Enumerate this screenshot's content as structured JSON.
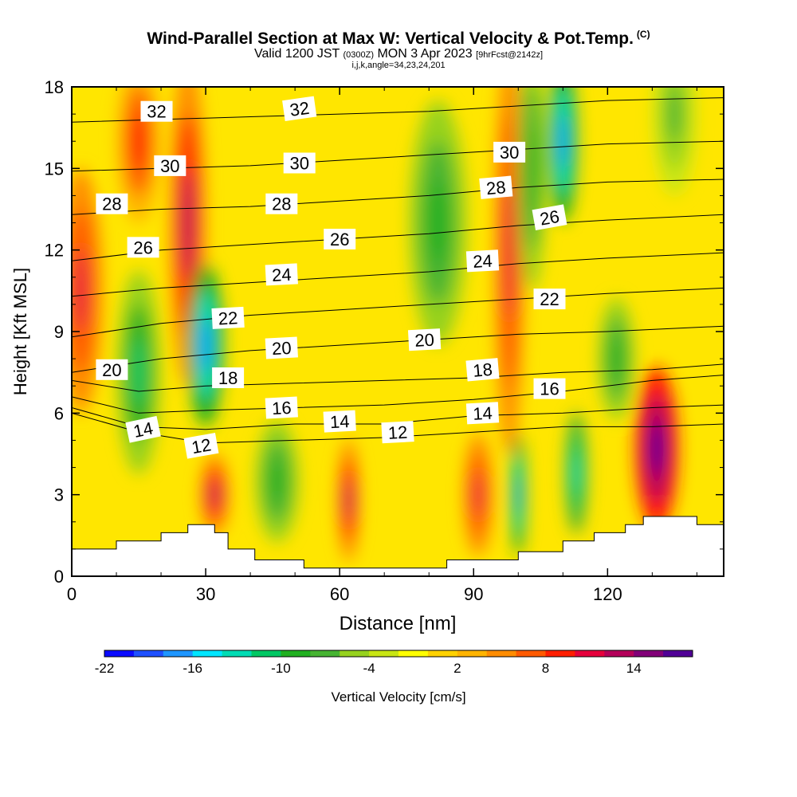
{
  "header": {
    "title": "Wind-Parallel Section at Max W: Vertical Velocity & Pot.Temp.",
    "copyright": "(C)",
    "valid_prefix": "Valid 1200 JST",
    "valid_utc": "(0300Z)",
    "valid_date": "MON 3 Apr 2023",
    "forecast": "[9hrFcst@2142z]",
    "grid_info": "i,j,k,angle=34,23,24,201"
  },
  "chart_data": {
    "type": "heatmap",
    "xlabel": "Distance [nm]",
    "ylabel": "Height [Kft MSL]",
    "xlim": [
      0,
      146
    ],
    "ylim": [
      0,
      18
    ],
    "x_ticks": [
      0,
      30,
      60,
      90,
      120
    ],
    "y_ticks": [
      0,
      3,
      6,
      9,
      12,
      15,
      18
    ],
    "colorbar": {
      "label": "Vertical Velocity [cm/s]",
      "ticks": [
        -22,
        -16,
        -10,
        -4,
        2,
        8,
        14
      ],
      "range": [
        -22,
        18
      ],
      "colors": [
        "#0a0aff",
        "#1e50ff",
        "#1e96ff",
        "#00e6ff",
        "#00dcb4",
        "#00c864",
        "#20b020",
        "#46b432",
        "#96d21e",
        "#c8e614",
        "#ffff00",
        "#ffd200",
        "#ffb400",
        "#ff8c00",
        "#ff5a00",
        "#ff1e00",
        "#e6003c",
        "#b4005a",
        "#820078",
        "#500096"
      ]
    },
    "velocity_cells": [
      {
        "x": 2,
        "y": 10.5,
        "v": 10,
        "rx": 3,
        "ry": 3
      },
      {
        "x": 15,
        "y": 7.5,
        "v": -12,
        "rx": 3,
        "ry": 2.5
      },
      {
        "x": 15,
        "y": 16,
        "v": 8,
        "rx": 3,
        "ry": 2
      },
      {
        "x": 26,
        "y": 13,
        "v": 12,
        "rx": 2.5,
        "ry": 4
      },
      {
        "x": 30,
        "y": 8.5,
        "v": -18,
        "rx": 2.5,
        "ry": 2
      },
      {
        "x": 32,
        "y": 3,
        "v": 12,
        "rx": 2,
        "ry": 1
      },
      {
        "x": 46,
        "y": 3.5,
        "v": -10,
        "rx": 3,
        "ry": 1.5
      },
      {
        "x": 62,
        "y": 2.8,
        "v": 12,
        "rx": 1.5,
        "ry": 1.5
      },
      {
        "x": 82,
        "y": 13,
        "v": -10,
        "rx": 4,
        "ry": 3
      },
      {
        "x": 91,
        "y": 3,
        "v": 10,
        "rx": 2,
        "ry": 1.5
      },
      {
        "x": 98,
        "y": 12,
        "v": 10,
        "rx": 2,
        "ry": 5
      },
      {
        "x": 100,
        "y": 3,
        "v": -18,
        "rx": 1,
        "ry": 1.5
      },
      {
        "x": 103,
        "y": 15,
        "v": -10,
        "rx": 2,
        "ry": 3
      },
      {
        "x": 110,
        "y": 16,
        "v": -18,
        "rx": 2,
        "ry": 2
      },
      {
        "x": 113,
        "y": 3.8,
        "v": -14,
        "rx": 1.5,
        "ry": 1.5
      },
      {
        "x": 122,
        "y": 8,
        "v": -10,
        "rx": 2.5,
        "ry": 1.5
      },
      {
        "x": 131,
        "y": 4.7,
        "v": 18,
        "rx": 3,
        "ry": 2
      },
      {
        "x": 135,
        "y": 17,
        "v": -8,
        "rx": 3,
        "ry": 2
      }
    ],
    "isentropes": [
      {
        "label": "12",
        "points": [
          [
            0,
            6.0
          ],
          [
            15,
            5.3
          ],
          [
            30,
            4.9
          ],
          [
            50,
            5.0
          ],
          [
            70,
            5.1
          ],
          [
            90,
            5.3
          ],
          [
            110,
            5.5
          ],
          [
            130,
            5.5
          ],
          [
            146,
            5.6
          ]
        ]
      },
      {
        "label": "14",
        "points": [
          [
            0,
            6.2
          ],
          [
            15,
            5.5
          ],
          [
            30,
            5.4
          ],
          [
            50,
            5.6
          ],
          [
            70,
            5.6
          ],
          [
            90,
            5.9
          ],
          [
            110,
            6.0
          ],
          [
            130,
            6.2
          ],
          [
            146,
            6.3
          ]
        ]
      },
      {
        "label": "16",
        "points": [
          [
            0,
            6.6
          ],
          [
            15,
            6.0
          ],
          [
            30,
            6.1
          ],
          [
            50,
            6.2
          ],
          [
            70,
            6.3
          ],
          [
            90,
            6.5
          ],
          [
            110,
            6.8
          ],
          [
            130,
            7.2
          ],
          [
            146,
            7.4
          ]
        ]
      },
      {
        "label": "18",
        "points": [
          [
            0,
            7.2
          ],
          [
            15,
            6.8
          ],
          [
            30,
            7.0
          ],
          [
            50,
            7.1
          ],
          [
            70,
            7.2
          ],
          [
            90,
            7.3
          ],
          [
            110,
            7.5
          ],
          [
            130,
            7.6
          ],
          [
            146,
            7.8
          ]
        ]
      },
      {
        "label": "20",
        "points": [
          [
            0,
            7.5
          ],
          [
            20,
            8.0
          ],
          [
            40,
            8.3
          ],
          [
            60,
            8.5
          ],
          [
            80,
            8.7
          ],
          [
            100,
            8.9
          ],
          [
            120,
            9.0
          ],
          [
            146,
            9.2
          ]
        ]
      },
      {
        "label": "22",
        "points": [
          [
            0,
            8.8
          ],
          [
            20,
            9.3
          ],
          [
            40,
            9.6
          ],
          [
            60,
            9.8
          ],
          [
            80,
            10.0
          ],
          [
            100,
            10.2
          ],
          [
            120,
            10.4
          ],
          [
            146,
            10.6
          ]
        ]
      },
      {
        "label": "24",
        "points": [
          [
            0,
            10.3
          ],
          [
            20,
            10.6
          ],
          [
            40,
            10.8
          ],
          [
            60,
            11.0
          ],
          [
            80,
            11.2
          ],
          [
            100,
            11.5
          ],
          [
            120,
            11.7
          ],
          [
            146,
            11.9
          ]
        ]
      },
      {
        "label": "26",
        "points": [
          [
            0,
            11.6
          ],
          [
            20,
            12.0
          ],
          [
            40,
            12.2
          ],
          [
            60,
            12.4
          ],
          [
            80,
            12.6
          ],
          [
            100,
            12.9
          ],
          [
            120,
            13.1
          ],
          [
            146,
            13.3
          ]
        ]
      },
      {
        "label": "28",
        "points": [
          [
            0,
            13.3
          ],
          [
            20,
            13.5
          ],
          [
            40,
            13.6
          ],
          [
            60,
            13.8
          ],
          [
            80,
            14.0
          ],
          [
            100,
            14.3
          ],
          [
            120,
            14.5
          ],
          [
            146,
            14.6
          ]
        ]
      },
      {
        "label": "30",
        "points": [
          [
            0,
            14.9
          ],
          [
            20,
            15.0
          ],
          [
            40,
            15.1
          ],
          [
            60,
            15.3
          ],
          [
            80,
            15.5
          ],
          [
            100,
            15.7
          ],
          [
            120,
            15.9
          ],
          [
            146,
            16.0
          ]
        ]
      },
      {
        "label": "32",
        "points": [
          [
            0,
            16.7
          ],
          [
            20,
            16.8
          ],
          [
            40,
            16.9
          ],
          [
            60,
            17.0
          ],
          [
            80,
            17.1
          ],
          [
            100,
            17.3
          ],
          [
            120,
            17.5
          ],
          [
            146,
            17.6
          ]
        ]
      }
    ],
    "contour_labels": [
      {
        "text": "32",
        "x": 19,
        "y": 17.1,
        "rot": 0
      },
      {
        "text": "32",
        "x": 51,
        "y": 17.2,
        "rot": -8
      },
      {
        "text": "30",
        "x": 22,
        "y": 15.1,
        "rot": 0
      },
      {
        "text": "30",
        "x": 51,
        "y": 15.2,
        "rot": 0
      },
      {
        "text": "30",
        "x": 98,
        "y": 15.6,
        "rot": 0
      },
      {
        "text": "28",
        "x": 9,
        "y": 13.7,
        "rot": 0
      },
      {
        "text": "28",
        "x": 47,
        "y": 13.7,
        "rot": 0
      },
      {
        "text": "28",
        "x": 95,
        "y": 14.3,
        "rot": -5
      },
      {
        "text": "26",
        "x": 16,
        "y": 12.1,
        "rot": 0
      },
      {
        "text": "26",
        "x": 60,
        "y": 12.4,
        "rot": 0
      },
      {
        "text": "26",
        "x": 107,
        "y": 13.2,
        "rot": -10
      },
      {
        "text": "24",
        "x": 47,
        "y": 11.1,
        "rot": -3
      },
      {
        "text": "24",
        "x": 92,
        "y": 11.6,
        "rot": -3
      },
      {
        "text": "22",
        "x": 35,
        "y": 9.5,
        "rot": -3
      },
      {
        "text": "22",
        "x": 107,
        "y": 10.2,
        "rot": 0
      },
      {
        "text": "20",
        "x": 9,
        "y": 7.6,
        "rot": 0
      },
      {
        "text": "20",
        "x": 47,
        "y": 8.4,
        "rot": -3
      },
      {
        "text": "20",
        "x": 79,
        "y": 8.7,
        "rot": -3
      },
      {
        "text": "18",
        "x": 35,
        "y": 7.3,
        "rot": 0
      },
      {
        "text": "18",
        "x": 92,
        "y": 7.6,
        "rot": -5
      },
      {
        "text": "16",
        "x": 47,
        "y": 6.2,
        "rot": -3
      },
      {
        "text": "16",
        "x": 107,
        "y": 6.9,
        "rot": 0
      },
      {
        "text": "14",
        "x": 16,
        "y": 5.4,
        "rot": -12
      },
      {
        "text": "14",
        "x": 60,
        "y": 5.7,
        "rot": -3
      },
      {
        "text": "14",
        "x": 92,
        "y": 6.0,
        "rot": -3
      },
      {
        "text": "12",
        "x": 29,
        "y": 4.8,
        "rot": -10
      },
      {
        "text": "12",
        "x": 73,
        "y": 5.3,
        "rot": -3
      }
    ],
    "terrain": [
      [
        0,
        1.0
      ],
      [
        10,
        1.0
      ],
      [
        10,
        1.3
      ],
      [
        20,
        1.3
      ],
      [
        20,
        1.6
      ],
      [
        26,
        1.6
      ],
      [
        26,
        1.9
      ],
      [
        32,
        1.9
      ],
      [
        32,
        1.6
      ],
      [
        35,
        1.6
      ],
      [
        35,
        1.0
      ],
      [
        41,
        1.0
      ],
      [
        41,
        0.6
      ],
      [
        50,
        0.6
      ],
      [
        50,
        0.6
      ],
      [
        52,
        0.6
      ],
      [
        52,
        0.3
      ],
      [
        84,
        0.3
      ],
      [
        84,
        0.6
      ],
      [
        100,
        0.6
      ],
      [
        100,
        0.9
      ],
      [
        110,
        0.9
      ],
      [
        110,
        1.3
      ],
      [
        117,
        1.3
      ],
      [
        117,
        1.6
      ],
      [
        124,
        1.6
      ],
      [
        124,
        1.9
      ],
      [
        128,
        1.9
      ],
      [
        128,
        2.2
      ],
      [
        140,
        2.2
      ],
      [
        140,
        1.9
      ],
      [
        146,
        1.9
      ]
    ]
  }
}
